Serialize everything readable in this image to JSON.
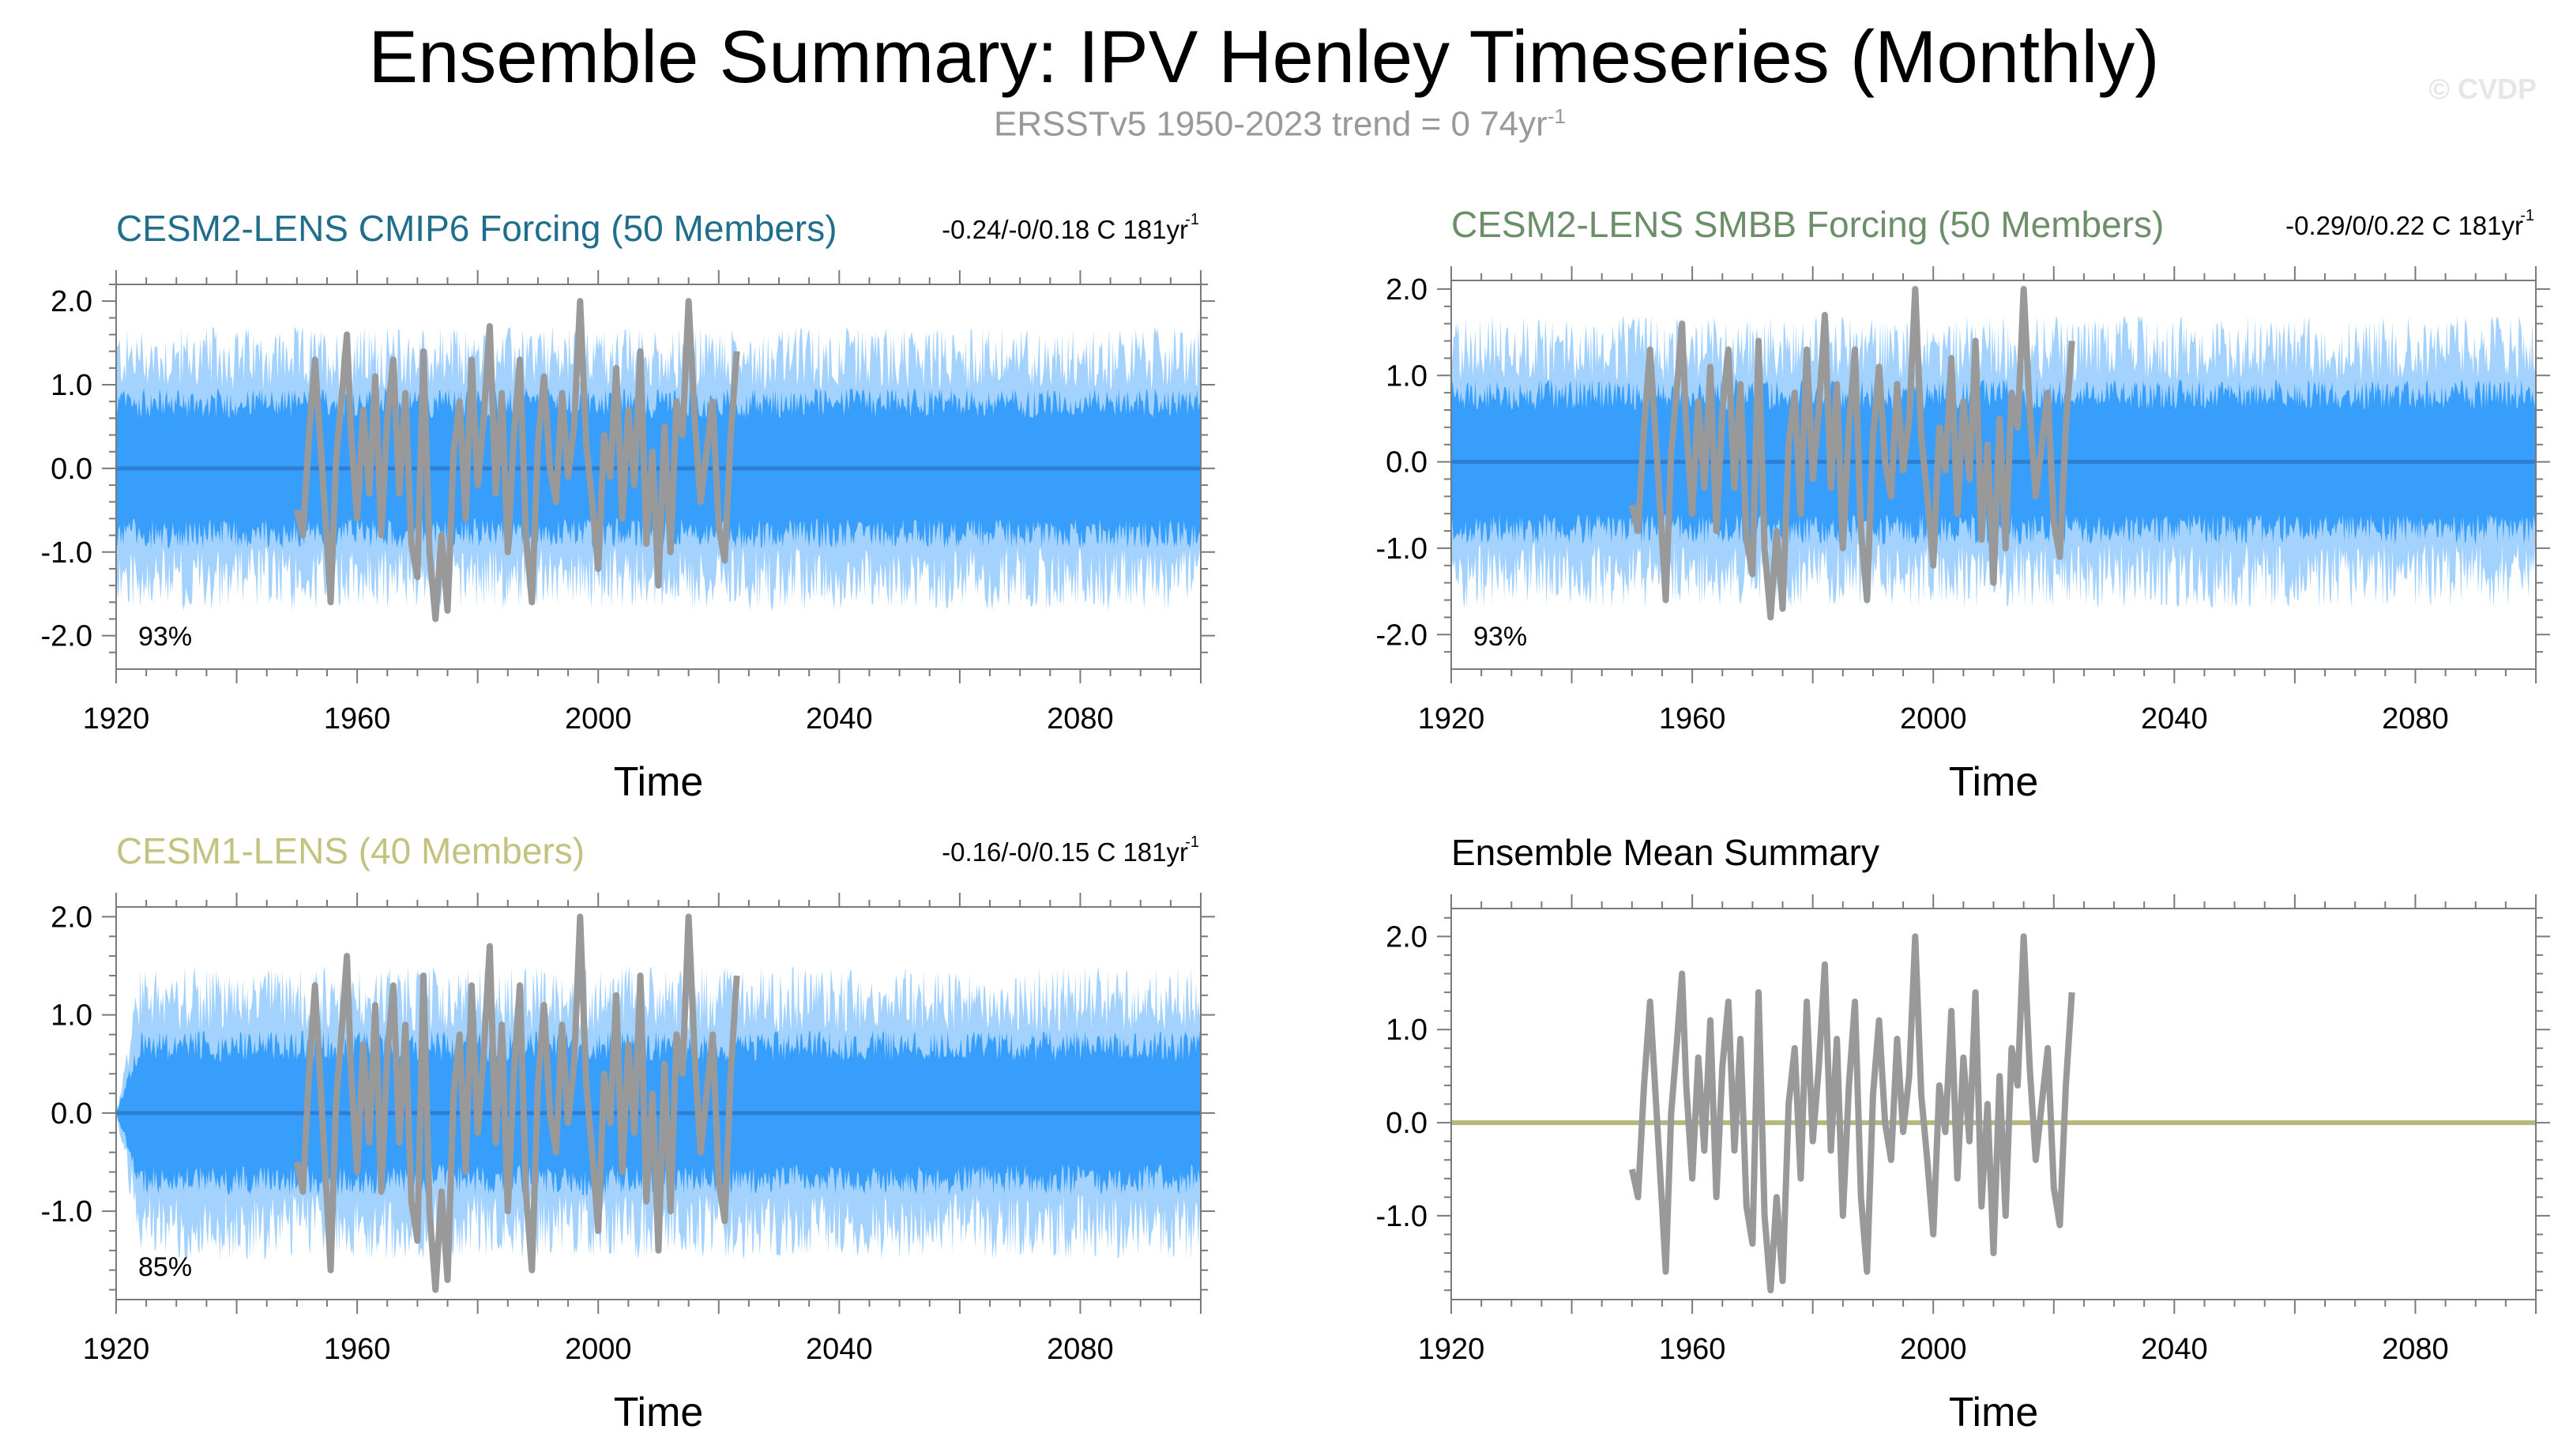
{
  "title": "Ensemble Summary: IPV Henley Timeseries (Monthly)",
  "subtitle": {
    "text": "ERSSTv5 1950-2023 trend = 0 74yr",
    "sup": "-1"
  },
  "credit": "© CVDP",
  "colors": {
    "outer_spread": "#a3d2ff",
    "inner_spread": "#389efc",
    "ens_mean": "#2e7fd1",
    "observations": "#999999",
    "em_summary_line": "#b5b87a"
  },
  "chart_data": [
    {
      "type": "area",
      "title": "CESM2-LENS CMIP6 Forcing (50 Members)",
      "title_color": "#1f6e8c",
      "trend_label": "-0.24/-0/0.18 C 181yr",
      "trend_sup": "-1",
      "xlabel": "Time",
      "ylabel": "",
      "xlim": [
        1920,
        2100
      ],
      "ylim": [
        -2.4,
        2.2
      ],
      "xticks": [
        1920,
        1960,
        2000,
        2040,
        2080
      ],
      "yticks": [
        2.0,
        1.0,
        0.0,
        -1.0,
        -2.0
      ],
      "ytick_labels": [
        "2.0",
        "1.0",
        "0.0",
        "-1.0",
        "-2.0"
      ],
      "percent_label": "93%",
      "spread": {
        "outer_amplitude": 1.7,
        "inner_amplitude": 0.8,
        "ensemble_mean": 0.0
      },
      "series": [
        {
          "role": "outer",
          "years": [
            1920,
            2100
          ],
          "amplitude": 1.7
        },
        {
          "role": "inner",
          "years": [
            1920,
            2100
          ],
          "amplitude": 0.8
        },
        {
          "role": "mean",
          "values": [
            [
              1920,
              0.0
            ],
            [
              2100,
              0.0
            ]
          ]
        }
      ]
    },
    {
      "type": "area",
      "title": "CESM2-LENS SMBB Forcing (50 Members)",
      "title_color": "#6c8f6a",
      "trend_label": "-0.29/0/0.22 C 181yr",
      "trend_sup": "-1",
      "xlabel": "Time",
      "ylabel": "",
      "xlim": [
        1920,
        2100
      ],
      "ylim": [
        -2.4,
        2.1
      ],
      "xticks": [
        1920,
        1960,
        2000,
        2040,
        2080
      ],
      "yticks": [
        2.0,
        1.0,
        0.0,
        -1.0,
        -2.0
      ],
      "ytick_labels": [
        "2.0",
        "1.0",
        "0.0",
        "-1.0",
        "-2.0"
      ],
      "percent_label": "93%",
      "spread": {
        "outer_amplitude": 1.7,
        "inner_amplitude": 0.8,
        "ensemble_mean": 0.0
      },
      "series": [
        {
          "role": "outer",
          "years": [
            1920,
            2100
          ],
          "amplitude": 1.7
        },
        {
          "role": "inner",
          "years": [
            1920,
            2100
          ],
          "amplitude": 0.8
        },
        {
          "role": "mean",
          "values": [
            [
              1920,
              0.0
            ],
            [
              2100,
              0.0
            ]
          ]
        }
      ]
    },
    {
      "type": "area",
      "title": "CESM1-LENS (40 Members)",
      "title_color": "#c4c281",
      "trend_label": "-0.16/-0/0.15 C 181yr",
      "trend_sup": "-1",
      "xlabel": "Time",
      "ylabel": "",
      "xlim": [
        1920,
        2100
      ],
      "ylim": [
        -1.9,
        2.1
      ],
      "xticks": [
        1920,
        1960,
        2000,
        2040,
        2080
      ],
      "yticks": [
        2.0,
        1.0,
        0.0,
        -1.0
      ],
      "ytick_labels": [
        "2.0",
        "1.0",
        "0.0",
        "-1.0"
      ],
      "percent_label": "85%",
      "spread": {
        "outer_amplitude": 1.5,
        "inner_amplitude": 0.7,
        "ensemble_mean": 0.0
      },
      "series": [
        {
          "role": "outer",
          "years": [
            1920,
            2100
          ],
          "amplitude": 1.5
        },
        {
          "role": "inner",
          "years": [
            1920,
            2100
          ],
          "amplitude": 0.7
        },
        {
          "role": "mean",
          "values": [
            [
              1920,
              0.0
            ],
            [
              2100,
              0.0
            ]
          ]
        }
      ]
    },
    {
      "type": "line",
      "title": "Ensemble Mean Summary",
      "title_color": "#000000",
      "trend_label": "",
      "trend_sup": "",
      "xlabel": "Time",
      "ylabel": "",
      "xlim": [
        1920,
        2100
      ],
      "ylim": [
        -1.9,
        2.3
      ],
      "xticks": [
        1920,
        1960,
        2000,
        2040,
        2080
      ],
      "yticks": [
        2.0,
        1.0,
        0.0,
        -1.0
      ],
      "ytick_labels": [
        "2.0",
        "1.0",
        "0.0",
        "-1.0"
      ],
      "percent_label": "",
      "series": [
        {
          "role": "em_line",
          "values": [
            [
              1920,
              0.0
            ],
            [
              2100,
              0.0
            ]
          ]
        }
      ]
    }
  ],
  "observations": {
    "name": "ERSSTv5",
    "values": [
      [
        1950.0,
        -0.5
      ],
      [
        1951.0,
        -0.8
      ],
      [
        1952.0,
        0.4
      ],
      [
        1953.0,
        1.3
      ],
      [
        1954.0,
        0.2
      ],
      [
        1955.0,
        -0.9
      ],
      [
        1955.6,
        -1.6
      ],
      [
        1956.5,
        0.1
      ],
      [
        1957.5,
        0.9
      ],
      [
        1958.3,
        1.6
      ],
      [
        1959.0,
        0.4
      ],
      [
        1960.0,
        -0.6
      ],
      [
        1961.0,
        0.7
      ],
      [
        1962.0,
        -0.3
      ],
      [
        1963.0,
        1.1
      ],
      [
        1964.0,
        -0.8
      ],
      [
        1965.0,
        0.6
      ],
      [
        1966.0,
        1.3
      ],
      [
        1967.0,
        -0.3
      ],
      [
        1968.0,
        0.9
      ],
      [
        1969.0,
        -0.9
      ],
      [
        1970.0,
        -1.3
      ],
      [
        1971.0,
        1.4
      ],
      [
        1972.0,
        -1.0
      ],
      [
        1973.0,
        -1.8
      ],
      [
        1974.0,
        -0.8
      ],
      [
        1975.0,
        -1.7
      ],
      [
        1976.0,
        0.2
      ],
      [
        1977.0,
        0.8
      ],
      [
        1978.0,
        -0.6
      ],
      [
        1979.0,
        1.3
      ],
      [
        1980.0,
        -0.2
      ],
      [
        1981.0,
        0.6
      ],
      [
        1982.0,
        1.7
      ],
      [
        1983.0,
        -0.3
      ],
      [
        1984.0,
        0.9
      ],
      [
        1985.0,
        -1.0
      ],
      [
        1986.0,
        0.4
      ],
      [
        1987.0,
        1.3
      ],
      [
        1988.0,
        -0.8
      ],
      [
        1989.0,
        -1.6
      ],
      [
        1990.0,
        0.3
      ],
      [
        1991.0,
        1.1
      ],
      [
        1992.0,
        0.0
      ],
      [
        1993.0,
        -0.4
      ],
      [
        1994.0,
        0.9
      ],
      [
        1995.0,
        -0.1
      ],
      [
        1996.0,
        0.5
      ],
      [
        1997.0,
        2.0
      ],
      [
        1998.0,
        0.3
      ],
      [
        1999.0,
        -0.4
      ],
      [
        2000.0,
        -1.2
      ],
      [
        2001.0,
        0.4
      ],
      [
        2002.0,
        -0.1
      ],
      [
        2003.0,
        1.2
      ],
      [
        2004.0,
        -0.6
      ],
      [
        2005.0,
        0.7
      ],
      [
        2006.0,
        -0.2
      ],
      [
        2007.0,
        1.4
      ],
      [
        2008.0,
        -0.9
      ],
      [
        2009.0,
        0.2
      ],
      [
        2010.0,
        -1.4
      ],
      [
        2011.0,
        0.5
      ],
      [
        2012.0,
        -1.0
      ],
      [
        2013.0,
        0.8
      ],
      [
        2014.0,
        0.4
      ],
      [
        2015.0,
        2.0
      ],
      [
        2016.0,
        0.6
      ],
      [
        2017.0,
        -0.4
      ],
      [
        2018.0,
        0.2
      ],
      [
        2019.0,
        0.8
      ],
      [
        2020.0,
        -0.7
      ],
      [
        2021.0,
        -1.1
      ],
      [
        2022.0,
        0.4
      ],
      [
        2023.0,
        1.4
      ]
    ]
  }
}
